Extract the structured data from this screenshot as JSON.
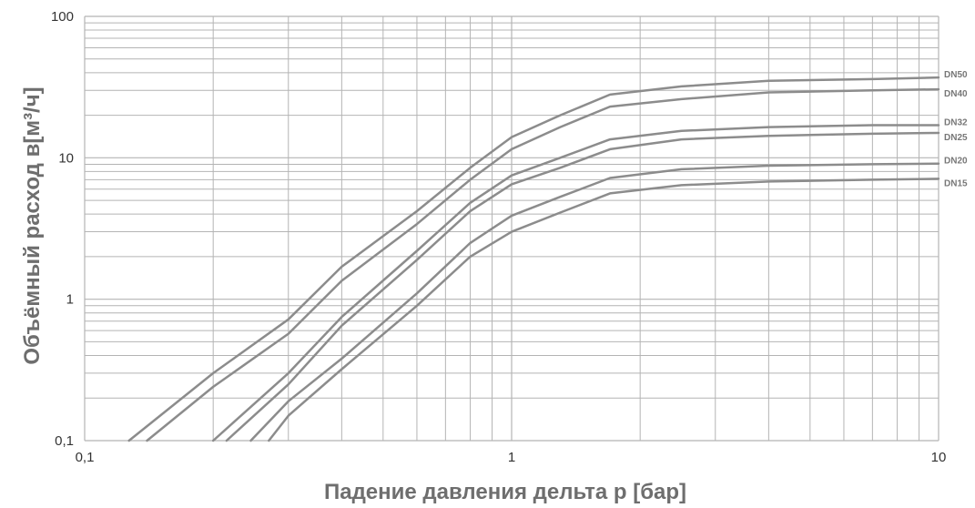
{
  "chart_data": {
    "type": "line",
    "xscale": "log",
    "yscale": "log",
    "xlim": [
      0.1,
      10
    ],
    "ylim": [
      0.1,
      100
    ],
    "grid": true,
    "xlabel": "Падение давления дельта p [бар]",
    "ylabel": "Объёмный расход в[м³/ч]",
    "xticks": [
      {
        "value": 0.1,
        "label": "0,1"
      },
      {
        "value": 1,
        "label": "1"
      },
      {
        "value": 10,
        "label": "10"
      }
    ],
    "yticks": [
      {
        "value": 0.1,
        "label": "0,1"
      },
      {
        "value": 1,
        "label": "1"
      },
      {
        "value": 10,
        "label": "10"
      },
      {
        "value": 100,
        "label": "100"
      }
    ],
    "line_color": "#8c8c8c",
    "grid_color": "#b4b4b4",
    "series": [
      {
        "name": "DN50",
        "points": [
          [
            0.127,
            0.1
          ],
          [
            0.2,
            0.3
          ],
          [
            0.3,
            0.72
          ],
          [
            0.4,
            1.7
          ],
          [
            0.6,
            4.2
          ],
          [
            0.8,
            8.5
          ],
          [
            1,
            14
          ],
          [
            1.3,
            20
          ],
          [
            1.7,
            28
          ],
          [
            2.5,
            32
          ],
          [
            4,
            35
          ],
          [
            7,
            36
          ],
          [
            10,
            37
          ]
        ]
      },
      {
        "name": "DN40",
        "points": [
          [
            0.14,
            0.1
          ],
          [
            0.2,
            0.24
          ],
          [
            0.3,
            0.57
          ],
          [
            0.4,
            1.35
          ],
          [
            0.6,
            3.4
          ],
          [
            0.8,
            7
          ],
          [
            1,
            11.5
          ],
          [
            1.3,
            16.5
          ],
          [
            1.7,
            23
          ],
          [
            2.5,
            26
          ],
          [
            4,
            29
          ],
          [
            7,
            30
          ],
          [
            10,
            30.5
          ]
        ]
      },
      {
        "name": "DN32",
        "points": [
          [
            0.2,
            0.1
          ],
          [
            0.3,
            0.3
          ],
          [
            0.4,
            0.75
          ],
          [
            0.6,
            2.2
          ],
          [
            0.8,
            4.8
          ],
          [
            1,
            7.5
          ],
          [
            1.3,
            10
          ],
          [
            1.7,
            13.5
          ],
          [
            2.5,
            15.5
          ],
          [
            4,
            16.5
          ],
          [
            7,
            17
          ],
          [
            10,
            17
          ]
        ]
      },
      {
        "name": "DN25",
        "points": [
          [
            0.215,
            0.1
          ],
          [
            0.3,
            0.25
          ],
          [
            0.4,
            0.65
          ],
          [
            0.6,
            1.9
          ],
          [
            0.8,
            4.2
          ],
          [
            1,
            6.5
          ],
          [
            1.3,
            8.5
          ],
          [
            1.7,
            11.5
          ],
          [
            2.5,
            13.5
          ],
          [
            4,
            14.3
          ],
          [
            7,
            14.8
          ],
          [
            10,
            15
          ]
        ]
      },
      {
        "name": "DN20",
        "points": [
          [
            0.245,
            0.1
          ],
          [
            0.3,
            0.19
          ],
          [
            0.4,
            0.38
          ],
          [
            0.6,
            1.1
          ],
          [
            0.8,
            2.5
          ],
          [
            1,
            3.9
          ],
          [
            1.3,
            5.3
          ],
          [
            1.7,
            7.2
          ],
          [
            2.5,
            8.3
          ],
          [
            4,
            8.8
          ],
          [
            7,
            9
          ],
          [
            10,
            9.1
          ]
        ]
      },
      {
        "name": "DN15",
        "points": [
          [
            0.27,
            0.1
          ],
          [
            0.3,
            0.15
          ],
          [
            0.4,
            0.32
          ],
          [
            0.6,
            0.9
          ],
          [
            0.8,
            2
          ],
          [
            1,
            3
          ],
          [
            1.3,
            4.1
          ],
          [
            1.7,
            5.6
          ],
          [
            2.5,
            6.4
          ],
          [
            4,
            6.8
          ],
          [
            7,
            7
          ],
          [
            10,
            7.1
          ]
        ]
      }
    ]
  }
}
